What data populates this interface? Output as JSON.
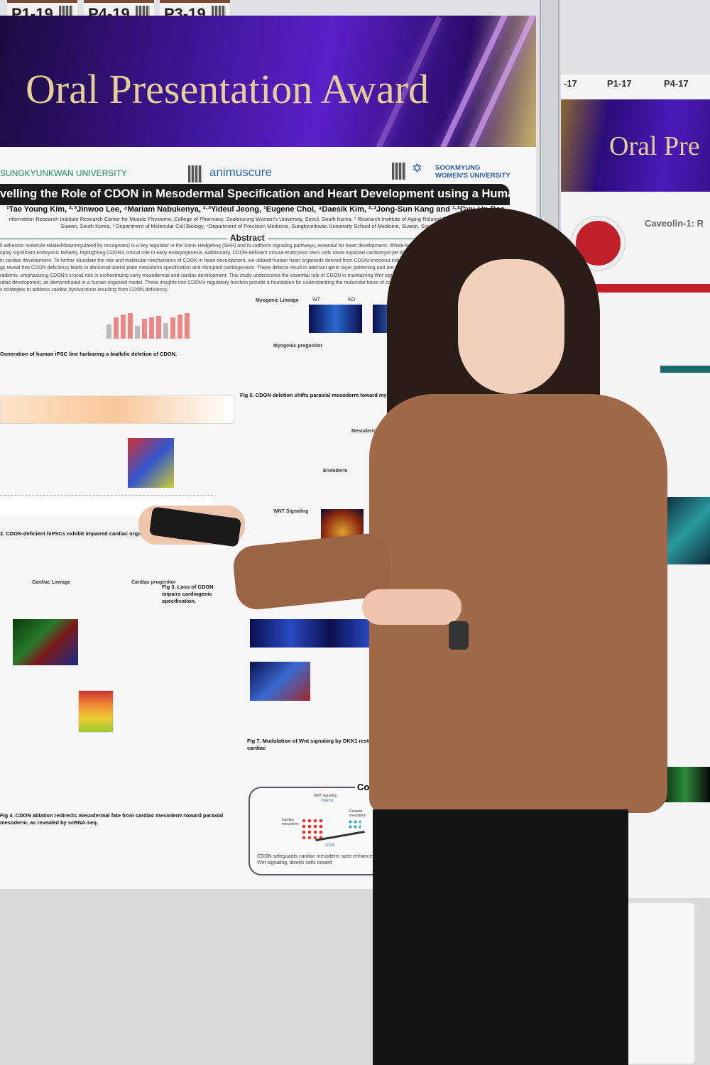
{
  "board_tags": [
    "P1-19",
    "P4-19",
    "P3-19"
  ],
  "banner": {
    "title": "Oral Presentation Award"
  },
  "poster": {
    "logos": {
      "left": "SUNGKYUNKWAN UNIVERSITY",
      "center": "animuscure",
      "right": "SOOKMYUNG WOMEN'S UNIVERSITY"
    },
    "title": "velling the Role of CDON in Mesodermal Specification and Heart Development using a Human Organoid Model",
    "authors": "¹Tae Young Kim, ²·³Jinwoo Lee, ⁴Mariam Nabukenya, ²·³Yideul Jeong, ¹Eugene Choi, ⁴Daesik Kim, ²·³Jong-Sun Kang and ¹·²Gyu-Un Bae",
    "affiliations": [
      "nformation Research Institute Research Center for Muscle Physiome, College of Pharmacy, Sookmyung Women's University, Seoul, South Korea, ² Research Institute of Aging Related Disease, AniMusCure Inc",
      "Suwon, South Korea, ³ Department of Molecular Cell Biology, ⁴Department of Precision Medicine, Sungkyunkwan University School of Medicine, Suwon, South Korea"
    ],
    "abstract_heading": "Abstract",
    "abstract_lines": [
      "ll adhesion molecule-related/downregulated by oncogenes) is a key regulator in the Sonic Hedgehog (SHH) and N-cadherin signaling pathways, essential for heart development. Whole-body CDO",
      "splay significant embryonic lethality, highlighting CDON's critical role in early embryogenesis. Additionally, CDON-deficient mouse embryonic stem cells show impaired cardiomyocyte differen",
      "in cardiac development. To further elucidate the role and molecular mechanisms of CDON in heart development, we utilized human heart organoids derived from CDON-knockout induced plurip",
      "gs reveal that CDON deficiency leads to abnormal lateral plate mesoderm specification and disrupted cardiogenesis. These defects result in aberrant germ layer patterning and are associate",
      "radients, emphasizing CDON's crucial role in orchestrating early mesodermal and cardiac development. This study underscores the essential role of CDON in maintaining Wnt signaling balance",
      "rdiac development, as demonstrated in a human organoid model. These insights into CDON's regulatory function provide a foundation for understanding the molecular basis of congenital heart",
      "c strategies to address cardiac dysfunctions resulting from CDON deficiency."
    ],
    "captions": {
      "fig1": "Generation of human iPSC line harboring a biallelic deletion of CDON.",
      "fig2": "2. CDON-deficient hiPSCs exhibit impaired cardiac organoid formation.",
      "fig3": "Fig 3. Loss of CDON impairs cardiogenic specification.",
      "fig4": "Fig 4. CDON ablation redirects mesodermal fate from cardiac mesoderm toward paraxial mesoderm, as revealed by scRNA-seq.",
      "fig5": "Fig 5. CDON deletion shifts paraxial mesoderm toward myogenic fates.",
      "fig7": "Fig 7. Modulation of Wnt signaling by DKK1 restores cardiac"
    },
    "fig_labels": {
      "myogenic_lineage": "Myogenic Lineage",
      "myogenic_progenitor": "Myogenic progenitor",
      "cardiac_lineage": "Cardiac Lineage",
      "cardiac_progenitor": "Cardiac progenitor",
      "mesoderm": "Mesoderm",
      "endoderm": "Endoderm",
      "wnt_signaling": "WNT Signaling",
      "wt": "WT",
      "ko": "KO"
    },
    "conclusion": {
      "heading": "Co",
      "wnt_label": "WNT signaling",
      "wnt_sub": "Optimal",
      "cardiac": "Cardiac mesoderm",
      "paraxial": "Paraxial mesoderm",
      "pivot": "CDON",
      "text": "CDON safeguards cardiac mesoderm spec enhances Wnt signaling, diverts cells toward"
    }
  },
  "right_poster": {
    "tags": [
      "-17",
      "P1-17",
      "P4-17"
    ],
    "banner_title": "Oral Pre",
    "title": "Caveolin-1: R"
  },
  "colors": {
    "banner_purple": "#4a1ab8",
    "banner_gold": "#e4cf97",
    "blazer": "#a0694a",
    "bar_pink": "#e88888"
  }
}
